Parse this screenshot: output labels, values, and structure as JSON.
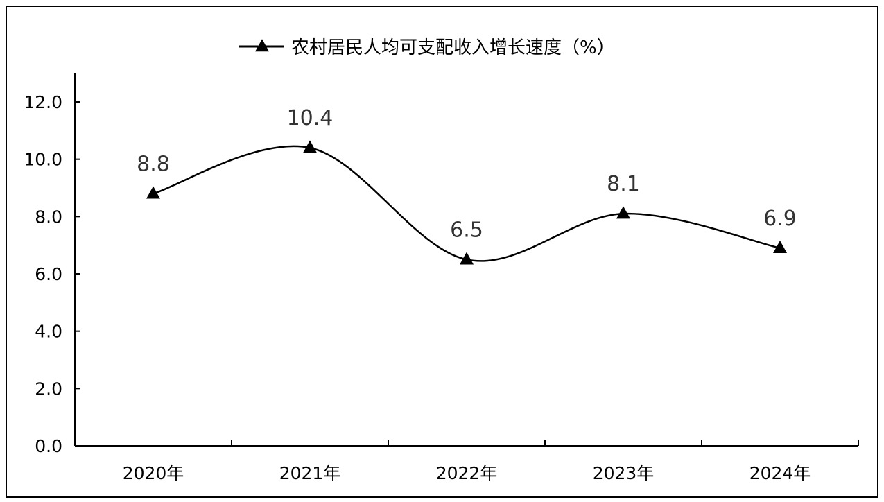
{
  "chart_data": {
    "type": "line",
    "title": "",
    "xlabel": "",
    "ylabel": "",
    "categories": [
      "2020年",
      "2021年",
      "2022年",
      "2023年",
      "2024年"
    ],
    "series": [
      {
        "name": "农村居民人均可支配收入增长速度（%）",
        "values": [
          8.8,
          10.4,
          6.5,
          8.1,
          6.9
        ],
        "marker": "triangle",
        "color": "#000000"
      }
    ],
    "y_ticks": [
      "0.0",
      "2.0",
      "4.0",
      "6.0",
      "8.0",
      "10.0",
      "12.0"
    ],
    "y_tick_values": [
      0,
      2,
      4,
      6,
      8,
      10,
      12
    ],
    "ylim": [
      0,
      12.0
    ],
    "grid": false,
    "legend_position": "top",
    "smooth": true
  }
}
